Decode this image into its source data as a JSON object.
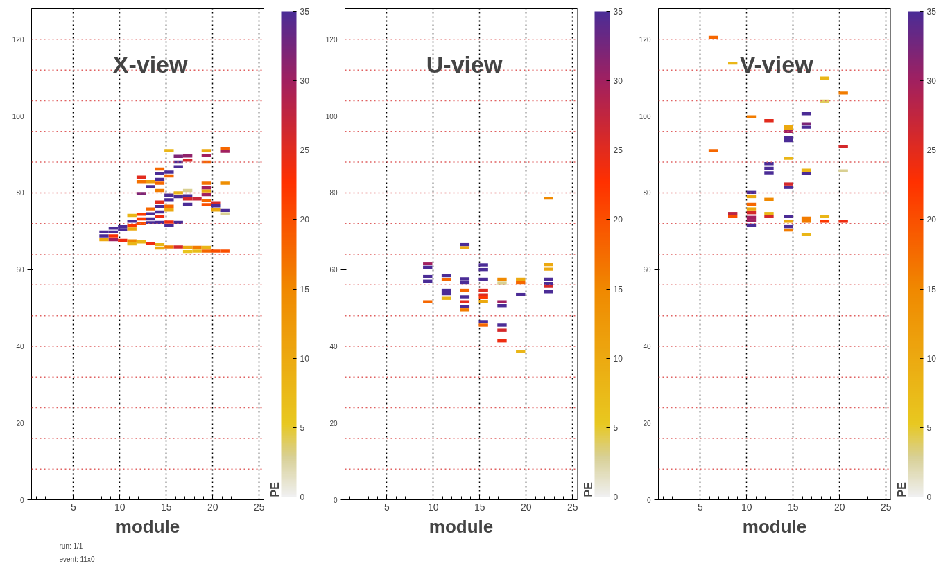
{
  "chart_data": [
    {
      "type": "scatter",
      "title": "X-view",
      "xlabel": "module",
      "clabel": "PE",
      "marker": "square",
      "grid": "x",
      "xlim": [
        0.5,
        25.5
      ],
      "xticks": [
        5,
        10,
        15,
        20,
        25
      ],
      "ylim": [
        0,
        128
      ],
      "yticks": [
        0,
        20,
        40,
        60,
        80,
        100,
        120
      ],
      "clim": [
        0,
        35
      ],
      "cticks": [
        0,
        5,
        10,
        15,
        20,
        25,
        30,
        35
      ],
      "annotations": [
        "run: 1/1",
        "event: 11x0"
      ],
      "ref_lines": [
        {
          "axis": "y",
          "value": 8,
          "color": "#e06060",
          "line_style": "dotted"
        },
        {
          "axis": "y",
          "value": 16,
          "color": "#e06060",
          "line_style": "dotted"
        },
        {
          "axis": "y",
          "value": 24,
          "color": "#e06060",
          "line_style": "dotted"
        },
        {
          "axis": "y",
          "value": 32,
          "color": "#e06060",
          "line_style": "dotted"
        },
        {
          "axis": "y",
          "value": 40,
          "color": "#e06060",
          "line_style": "dotted"
        },
        {
          "axis": "y",
          "value": 48,
          "color": "#e06060",
          "line_style": "dotted"
        },
        {
          "axis": "y",
          "value": 56,
          "color": "#e06060",
          "line_style": "dotted"
        },
        {
          "axis": "y",
          "value": 64,
          "color": "#e06060",
          "line_style": "dotted"
        },
        {
          "axis": "y",
          "value": 72,
          "color": "#e06060",
          "line_style": "dotted"
        },
        {
          "axis": "y",
          "value": 80,
          "color": "#e06060",
          "line_style": "dotted"
        },
        {
          "axis": "y",
          "value": 88,
          "color": "#e06060",
          "line_style": "dotted"
        },
        {
          "axis": "y",
          "value": 96,
          "color": "#e06060",
          "line_style": "dotted"
        },
        {
          "axis": "y",
          "value": 104,
          "color": "#e06060",
          "line_style": "dotted"
        },
        {
          "axis": "y",
          "value": 112,
          "color": "#e06060",
          "line_style": "dotted"
        },
        {
          "axis": "y",
          "value": 120,
          "color": "#e06060",
          "line_style": "dotted"
        }
      ],
      "x": [
        8.3,
        8.3,
        8.3,
        9.3,
        9.3,
        9.3,
        9.3,
        10.3,
        10.3,
        10.3,
        11.3,
        11.3,
        11.3,
        11.3,
        11.3,
        11.3,
        12.3,
        12.3,
        12.3,
        12.3,
        12.3,
        12.3,
        12.3,
        13.3,
        13.3,
        13.3,
        13.3,
        13.3,
        13.3,
        13.3,
        14.3,
        14.3,
        14.3,
        14.3,
        14.3,
        14.3,
        14.3,
        14.3,
        14.3,
        14.3,
        14.3,
        14.3,
        15.3,
        15.3,
        15.3,
        15.3,
        15.3,
        15.3,
        15.3,
        15.3,
        15.3,
        15.3,
        16.3,
        16.3,
        16.3,
        16.3,
        16.3,
        16.3,
        16.3,
        17.3,
        17.3,
        17.3,
        17.3,
        17.3,
        17.3,
        17.3,
        17.3,
        18.3,
        18.3,
        18.3,
        19.3,
        19.3,
        19.3,
        19.3,
        19.3,
        19.3,
        19.3,
        19.3,
        19.3,
        19.3,
        19.3,
        20.3,
        20.3,
        20.3,
        20.3,
        21.3,
        21.3,
        21.3,
        21.3,
        21.3,
        21.3
      ],
      "values": [
        69.8,
        68.8,
        67.8,
        70.8,
        69.8,
        68.8,
        67.8,
        71.2,
        70.4,
        67.6,
        74.1,
        72.6,
        71.4,
        70.6,
        67.5,
        66.7,
        84.1,
        82.9,
        79.8,
        74.4,
        73.2,
        72.0,
        67.2,
        82.9,
        81.6,
        75.8,
        74.5,
        73.2,
        72.2,
        66.8,
        86.2,
        85.0,
        83.5,
        82.5,
        80.6,
        77.6,
        76.4,
        75.0,
        73.8,
        72.3,
        66.5,
        65.6,
        91.0,
        85.4,
        84.4,
        79.4,
        78.2,
        76.5,
        75.5,
        72.4,
        71.5,
        65.9,
        89.5,
        88.0,
        86.8,
        80.0,
        79.0,
        72.3,
        65.9,
        89.6,
        88.5,
        80.6,
        79.2,
        78.4,
        77.0,
        65.8,
        64.7,
        78.4,
        65.8,
        64.8,
        91.0,
        89.8,
        88.0,
        82.5,
        81.3,
        80.5,
        79.5,
        78.0,
        76.9,
        65.8,
        64.8,
        77.4,
        76.6,
        75.5,
        64.8,
        91.6,
        90.8,
        82.5,
        75.4,
        74.5,
        64.8
      ],
      "cvalues": [
        35,
        35,
        10,
        35,
        35,
        23,
        30,
        35,
        35,
        24,
        8,
        35,
        22,
        10,
        15,
        8,
        25,
        17,
        32,
        22,
        22,
        20,
        8,
        12,
        35,
        18,
        35,
        35,
        35,
        24,
        18,
        35,
        35,
        18,
        16,
        25,
        35,
        35,
        24,
        35,
        8,
        10,
        8,
        35,
        18,
        35,
        35,
        18,
        10,
        24,
        35,
        16,
        32,
        35,
        35,
        8,
        35,
        35,
        26,
        31,
        26,
        3,
        35,
        26,
        35,
        10,
        6,
        27,
        16,
        7,
        10,
        30,
        18,
        17,
        30,
        10,
        30,
        18,
        20,
        8,
        18,
        26,
        35,
        10,
        20,
        18,
        30,
        14,
        35,
        3,
        20
      ]
    },
    {
      "type": "scatter",
      "title": "U-view",
      "xlabel": "module",
      "clabel": "PE",
      "marker": "square",
      "grid": "x",
      "xlim": [
        0.5,
        25.5
      ],
      "xticks": [
        5,
        10,
        15,
        20,
        25
      ],
      "ylim": [
        0,
        128
      ],
      "yticks": [
        0,
        20,
        40,
        60,
        80,
        100,
        120
      ],
      "clim": [
        0,
        35
      ],
      "cticks": [
        0,
        5,
        10,
        15,
        20,
        25,
        30,
        35
      ],
      "ref_lines": [
        {
          "axis": "y",
          "value": 8,
          "color": "#e06060",
          "line_style": "dotted"
        },
        {
          "axis": "y",
          "value": 16,
          "color": "#e06060",
          "line_style": "dotted"
        },
        {
          "axis": "y",
          "value": 24,
          "color": "#e06060",
          "line_style": "dotted"
        },
        {
          "axis": "y",
          "value": 32,
          "color": "#e06060",
          "line_style": "dotted"
        },
        {
          "axis": "y",
          "value": 40,
          "color": "#e06060",
          "line_style": "dotted"
        },
        {
          "axis": "y",
          "value": 48,
          "color": "#e06060",
          "line_style": "dotted"
        },
        {
          "axis": "y",
          "value": 56,
          "color": "#e06060",
          "line_style": "dotted"
        },
        {
          "axis": "y",
          "value": 64,
          "color": "#e06060",
          "line_style": "dotted"
        },
        {
          "axis": "y",
          "value": 72,
          "color": "#e06060",
          "line_style": "dotted"
        },
        {
          "axis": "y",
          "value": 80,
          "color": "#e06060",
          "line_style": "dotted"
        },
        {
          "axis": "y",
          "value": 88,
          "color": "#e06060",
          "line_style": "dotted"
        },
        {
          "axis": "y",
          "value": 96,
          "color": "#e06060",
          "line_style": "dotted"
        },
        {
          "axis": "y",
          "value": 104,
          "color": "#e06060",
          "line_style": "dotted"
        },
        {
          "axis": "y",
          "value": 112,
          "color": "#e06060",
          "line_style": "dotted"
        },
        {
          "axis": "y",
          "value": 120,
          "color": "#e06060",
          "line_style": "dotted"
        }
      ],
      "x": [
        9.4,
        9.4,
        9.4,
        9.4,
        9.4,
        11.4,
        11.4,
        11.4,
        11.4,
        11.4,
        13.4,
        13.4,
        13.4,
        13.4,
        13.4,
        13.4,
        13.4,
        13.4,
        13.4,
        15.4,
        15.4,
        15.4,
        15.4,
        15.4,
        15.4,
        15.4,
        15.4,
        15.4,
        17.4,
        17.4,
        17.4,
        17.4,
        17.4,
        17.4,
        17.4,
        19.4,
        19.4,
        19.4,
        19.4,
        22.4,
        22.4,
        22.4,
        22.4,
        22.4,
        22.4,
        22.4
      ],
      "values": [
        61.6,
        60.6,
        58.2,
        57.0,
        51.6,
        58.4,
        57.4,
        54.6,
        53.7,
        52.5,
        66.5,
        65.7,
        57.6,
        56.6,
        54.6,
        52.9,
        51.6,
        50.4,
        49.5,
        61.2,
        60.0,
        57.5,
        54.6,
        53.4,
        52.7,
        51.7,
        46.4,
        45.5,
        57.5,
        56.5,
        51.6,
        50.6,
        45.5,
        44.2,
        41.4,
        57.5,
        56.6,
        53.5,
        38.6,
        78.6,
        61.3,
        60.1,
        57.5,
        56.4,
        55.6,
        54.2
      ],
      "cvalues": [
        30,
        35,
        35,
        35,
        18,
        35,
        18,
        35,
        35,
        8,
        35,
        10,
        35,
        35,
        18,
        35,
        25,
        35,
        16,
        35,
        35,
        35,
        25,
        25,
        22,
        10,
        35,
        18,
        15,
        3,
        30,
        35,
        35,
        26,
        24,
        10,
        18,
        35,
        8,
        15,
        10,
        10,
        35,
        35,
        26,
        35
      ]
    },
    {
      "type": "scatter",
      "title": "V-view",
      "xlabel": "module",
      "clabel": "PE",
      "marker": "square",
      "grid": "x",
      "xlim": [
        0.5,
        25.5
      ],
      "xticks": [
        5,
        10,
        15,
        20,
        25
      ],
      "ylim": [
        0,
        128
      ],
      "yticks": [
        0,
        20,
        40,
        60,
        80,
        100,
        120
      ],
      "clim": [
        0,
        35
      ],
      "cticks": [
        0,
        5,
        10,
        15,
        20,
        25,
        30,
        35
      ],
      "ref_lines": [
        {
          "axis": "y",
          "value": 8,
          "color": "#e06060",
          "line_style": "dotted"
        },
        {
          "axis": "y",
          "value": 16,
          "color": "#e06060",
          "line_style": "dotted"
        },
        {
          "axis": "y",
          "value": 24,
          "color": "#e06060",
          "line_style": "dotted"
        },
        {
          "axis": "y",
          "value": 32,
          "color": "#e06060",
          "line_style": "dotted"
        },
        {
          "axis": "y",
          "value": 40,
          "color": "#e06060",
          "line_style": "dotted"
        },
        {
          "axis": "y",
          "value": 48,
          "color": "#e06060",
          "line_style": "dotted"
        },
        {
          "axis": "y",
          "value": 56,
          "color": "#e06060",
          "line_style": "dotted"
        },
        {
          "axis": "y",
          "value": 64,
          "color": "#e06060",
          "line_style": "dotted"
        },
        {
          "axis": "y",
          "value": 72,
          "color": "#e06060",
          "line_style": "dotted"
        },
        {
          "axis": "y",
          "value": 80,
          "color": "#e06060",
          "line_style": "dotted"
        },
        {
          "axis": "y",
          "value": 88,
          "color": "#e06060",
          "line_style": "dotted"
        },
        {
          "axis": "y",
          "value": 96,
          "color": "#e06060",
          "line_style": "dotted"
        },
        {
          "axis": "y",
          "value": 104,
          "color": "#e06060",
          "line_style": "dotted"
        },
        {
          "axis": "y",
          "value": 112,
          "color": "#e06060",
          "line_style": "dotted"
        },
        {
          "axis": "y",
          "value": 120,
          "color": "#e06060",
          "line_style": "dotted"
        }
      ],
      "x": [
        6.4,
        6.4,
        8.5,
        8.5,
        8.5,
        10.5,
        10.5,
        10.5,
        10.5,
        10.5,
        10.5,
        10.5,
        10.5,
        10.5,
        12.4,
        12.4,
        12.4,
        12.4,
        12.4,
        12.4,
        12.4,
        14.5,
        14.5,
        14.5,
        14.5,
        14.5,
        14.5,
        14.5,
        14.5,
        14.5,
        14.5,
        14.5,
        14.5,
        16.4,
        16.4,
        16.4,
        16.4,
        16.4,
        16.4,
        16.4,
        16.4,
        18.4,
        18.4,
        18.4,
        18.4,
        20.4,
        20.4,
        20.4,
        20.4
      ],
      "values": [
        120.5,
        91.0,
        113.8,
        74.6,
        73.8,
        99.8,
        80.1,
        79.0,
        77.0,
        75.8,
        74.8,
        73.6,
        72.8,
        71.6,
        98.8,
        87.6,
        86.4,
        85.2,
        78.3,
        74.6,
        73.8,
        97.3,
        96.7,
        96.0,
        94.4,
        93.6,
        89.0,
        82.3,
        81.4,
        73.8,
        72.6,
        71.2,
        70.3,
        100.6,
        98.0,
        97.1,
        85.9,
        85.0,
        73.4,
        72.6,
        69.1,
        109.9,
        103.9,
        73.8,
        72.6,
        106.0,
        92.1,
        85.7,
        72.6
      ],
      "cvalues": [
        18,
        18,
        8,
        28,
        20,
        16,
        35,
        10,
        18,
        10,
        26,
        30,
        30,
        35,
        25,
        35,
        35,
        35,
        15,
        8,
        26,
        10,
        10,
        30,
        35,
        35,
        8,
        26,
        35,
        35,
        10,
        35,
        16,
        35,
        32,
        35,
        8,
        35,
        16,
        16,
        8,
        8,
        4,
        8,
        22,
        16,
        26,
        3,
        24
      ]
    }
  ]
}
